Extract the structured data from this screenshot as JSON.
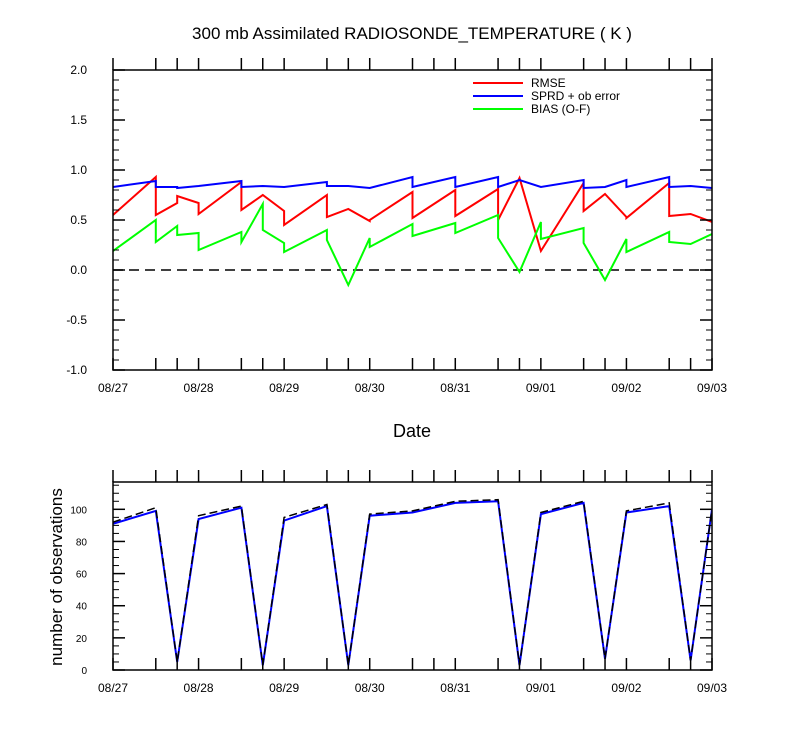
{
  "chart_data": [
    {
      "type": "line",
      "title": "300 mb Assimilated RADIOSONDE_TEMPERATURE ( K )",
      "xlabel": "Date",
      "ylabel": "",
      "xlim": [
        0,
        168
      ],
      "ylim": [
        -1.0,
        2.0
      ],
      "yticks": [
        "-1.0",
        "-0.5",
        "0.0",
        "0.5",
        "1.0",
        "1.5",
        "2.0"
      ],
      "ytick_values": [
        -1.0,
        -0.5,
        0.0,
        0.5,
        1.0,
        1.5,
        2.0
      ],
      "xtick_labels": [
        "08/27",
        "08/28",
        "08/29",
        "08/30",
        "08/31",
        "09/01",
        "09/02",
        "09/03"
      ],
      "xtick_hours": [
        0,
        24,
        48,
        72,
        96,
        120,
        144,
        168
      ],
      "minor_xtick_hours": [
        12,
        18,
        36,
        42,
        60,
        66,
        84,
        90,
        108,
        114,
        132,
        138,
        156,
        162
      ],
      "reference_line": {
        "y": 0.0,
        "style": "dashed",
        "color": "#000000"
      },
      "legend": {
        "placement": "top-right",
        "entries": [
          {
            "label": "RMSE",
            "color": "#ff0000"
          },
          {
            "label": "SPRD + ob error",
            "color": "#0000ff"
          },
          {
            "label": "BIAS (O-F)",
            "color": "#00ff00"
          }
        ]
      },
      "series": [
        {
          "name": "RMSE",
          "color": "#ff0000",
          "x": [
            0,
            12,
            12,
            18,
            18,
            24,
            24,
            36,
            36,
            42,
            42,
            48,
            48,
            60,
            60,
            66,
            66,
            72,
            72,
            84,
            84,
            96,
            96,
            108,
            108,
            114,
            114,
            120,
            120,
            132,
            132,
            138,
            138,
            144,
            144,
            156,
            156,
            162,
            162,
            168
          ],
          "values": [
            0.55,
            0.93,
            0.55,
            0.67,
            0.74,
            0.67,
            0.56,
            0.88,
            0.6,
            0.75,
            0.75,
            0.59,
            0.45,
            0.75,
            0.53,
            0.61,
            0.61,
            0.49,
            0.5,
            0.78,
            0.52,
            0.8,
            0.54,
            0.81,
            0.5,
            0.92,
            0.92,
            0.19,
            0.19,
            0.87,
            0.59,
            0.76,
            0.76,
            0.53,
            0.52,
            0.87,
            0.54,
            0.56,
            0.56,
            0.48
          ]
        },
        {
          "name": "SPRD + ob error",
          "color": "#0000ff",
          "x": [
            0,
            12,
            12,
            18,
            18,
            24,
            24,
            36,
            36,
            42,
            42,
            48,
            48,
            60,
            60,
            66,
            66,
            72,
            72,
            84,
            84,
            96,
            96,
            108,
            108,
            114,
            114,
            120,
            120,
            132,
            132,
            138,
            138,
            144,
            144,
            156,
            156,
            162,
            162,
            168
          ],
          "values": [
            0.83,
            0.89,
            0.83,
            0.83,
            0.82,
            0.84,
            0.84,
            0.89,
            0.83,
            0.84,
            0.84,
            0.83,
            0.83,
            0.88,
            0.84,
            0.84,
            0.84,
            0.82,
            0.82,
            0.93,
            0.83,
            0.93,
            0.83,
            0.93,
            0.83,
            0.9,
            0.9,
            0.83,
            0.83,
            0.9,
            0.82,
            0.83,
            0.83,
            0.9,
            0.83,
            0.93,
            0.83,
            0.84,
            0.84,
            0.82
          ]
        },
        {
          "name": "BIAS (O-F)",
          "color": "#00ff00",
          "x": [
            0,
            12,
            12,
            18,
            18,
            24,
            24,
            36,
            36,
            42,
            42,
            48,
            48,
            60,
            60,
            66,
            66,
            72,
            72,
            84,
            84,
            96,
            96,
            108,
            108,
            114,
            114,
            120,
            120,
            132,
            132,
            138,
            138,
            144,
            144,
            156,
            156,
            162,
            162,
            168
          ],
          "values": [
            0.19,
            0.5,
            0.28,
            0.44,
            0.35,
            0.37,
            0.2,
            0.38,
            0.28,
            0.66,
            0.4,
            0.27,
            0.18,
            0.4,
            0.3,
            -0.15,
            -0.15,
            0.32,
            0.23,
            0.46,
            0.34,
            0.47,
            0.37,
            0.55,
            0.32,
            -0.02,
            -0.02,
            0.48,
            0.31,
            0.42,
            0.27,
            -0.1,
            -0.1,
            0.31,
            0.18,
            0.38,
            0.28,
            0.26,
            0.26,
            0.36
          ]
        }
      ]
    },
    {
      "type": "line",
      "title": "",
      "xlabel": "",
      "ylabel": "number of observations",
      "xlim": [
        0,
        168
      ],
      "ylim": [
        0,
        117
      ],
      "yticks": [
        "0",
        "20",
        "40",
        "60",
        "80",
        "100"
      ],
      "ytick_values": [
        0,
        20,
        40,
        60,
        80,
        100
      ],
      "xtick_labels": [
        "08/27",
        "08/28",
        "08/29",
        "08/30",
        "08/31",
        "09/01",
        "09/02",
        "09/03"
      ],
      "xtick_hours": [
        0,
        24,
        48,
        72,
        96,
        120,
        144,
        168
      ],
      "minor_xtick_hours": [
        12,
        18,
        36,
        42,
        60,
        66,
        84,
        90,
        108,
        114,
        132,
        138,
        156,
        162
      ],
      "series": [
        {
          "name": "observations (blue)",
          "color": "#0000ff",
          "style": "solid",
          "x": [
            0,
            12,
            18,
            24,
            36,
            42,
            48,
            60,
            66,
            72,
            84,
            96,
            108,
            114,
            120,
            132,
            138,
            144,
            156,
            162,
            168
          ],
          "values": [
            91,
            99,
            5,
            94,
            101,
            3,
            93,
            102,
            3,
            96,
            98,
            104,
            105,
            3,
            97,
            104,
            7,
            98,
            102,
            6,
            100
          ]
        },
        {
          "name": "observations (dashed)",
          "color": "#000000",
          "style": "dashed",
          "x": [
            0,
            12,
            18,
            24,
            36,
            42,
            48,
            60,
            66,
            72,
            84,
            96,
            108,
            114,
            120,
            132,
            138,
            144,
            156,
            162,
            168
          ],
          "values": [
            92,
            101,
            5,
            96,
            102,
            3,
            95,
            103,
            3,
            97,
            99,
            105,
            106,
            3,
            98,
            105,
            7,
            99,
            104,
            6,
            100
          ]
        }
      ]
    }
  ]
}
